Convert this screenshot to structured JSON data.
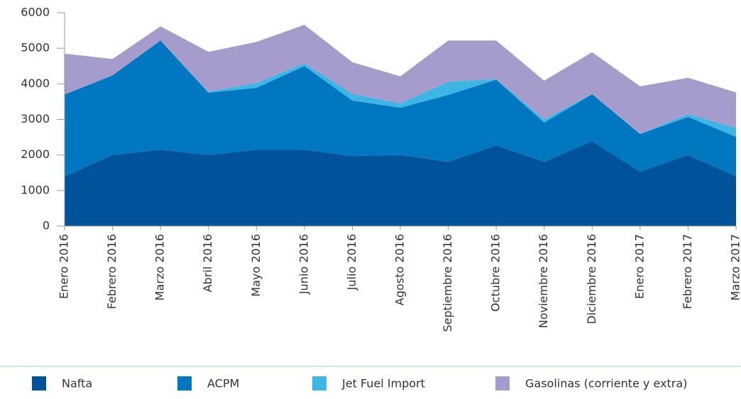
{
  "chart_data": {
    "type": "stacked_area",
    "categories": [
      "Enero 2016",
      "Febrero 2016",
      "Marzo 2016",
      "Abril 2016",
      "Mayo 2016",
      "Junio 2016",
      "Julio 2016",
      "Agosto 2016",
      "Septiembre 2016",
      "Octubre 2016",
      "Noviembre 2016",
      "Diciembre 2016",
      "Enero 2017",
      "Febrero 2017",
      "Marzo 2017"
    ],
    "series": [
      {
        "name": "Nafta",
        "color": "#00529b",
        "values": [
          1400,
          2000,
          2150,
          2000,
          2150,
          2150,
          1970,
          2000,
          1810,
          2270,
          1810,
          2390,
          1530,
          2000,
          1400
        ]
      },
      {
        "name": "ACPM",
        "color": "#0077c0",
        "values": [
          2300,
          2240,
          3070,
          1750,
          1740,
          2350,
          1560,
          1330,
          1880,
          1850,
          1100,
          1320,
          1060,
          1070,
          1110
        ]
      },
      {
        "name": "Jet Fuel Import",
        "color": "#3db6e6",
        "values": [
          0,
          0,
          0,
          30,
          130,
          80,
          190,
          120,
          370,
          20,
          90,
          10,
          10,
          80,
          250
        ]
      },
      {
        "name": "Gasolinas (corriente y extra)",
        "color": "#a59ccc",
        "values": [
          1150,
          460,
          400,
          1120,
          1160,
          1080,
          890,
          760,
          1160,
          1080,
          1090,
          1170,
          1330,
          1020,
          1000
        ]
      }
    ],
    "ylim": [
      0,
      6000
    ],
    "yticks": [
      0,
      1000,
      2000,
      3000,
      4000,
      5000,
      6000
    ],
    "legend": "bottom"
  }
}
